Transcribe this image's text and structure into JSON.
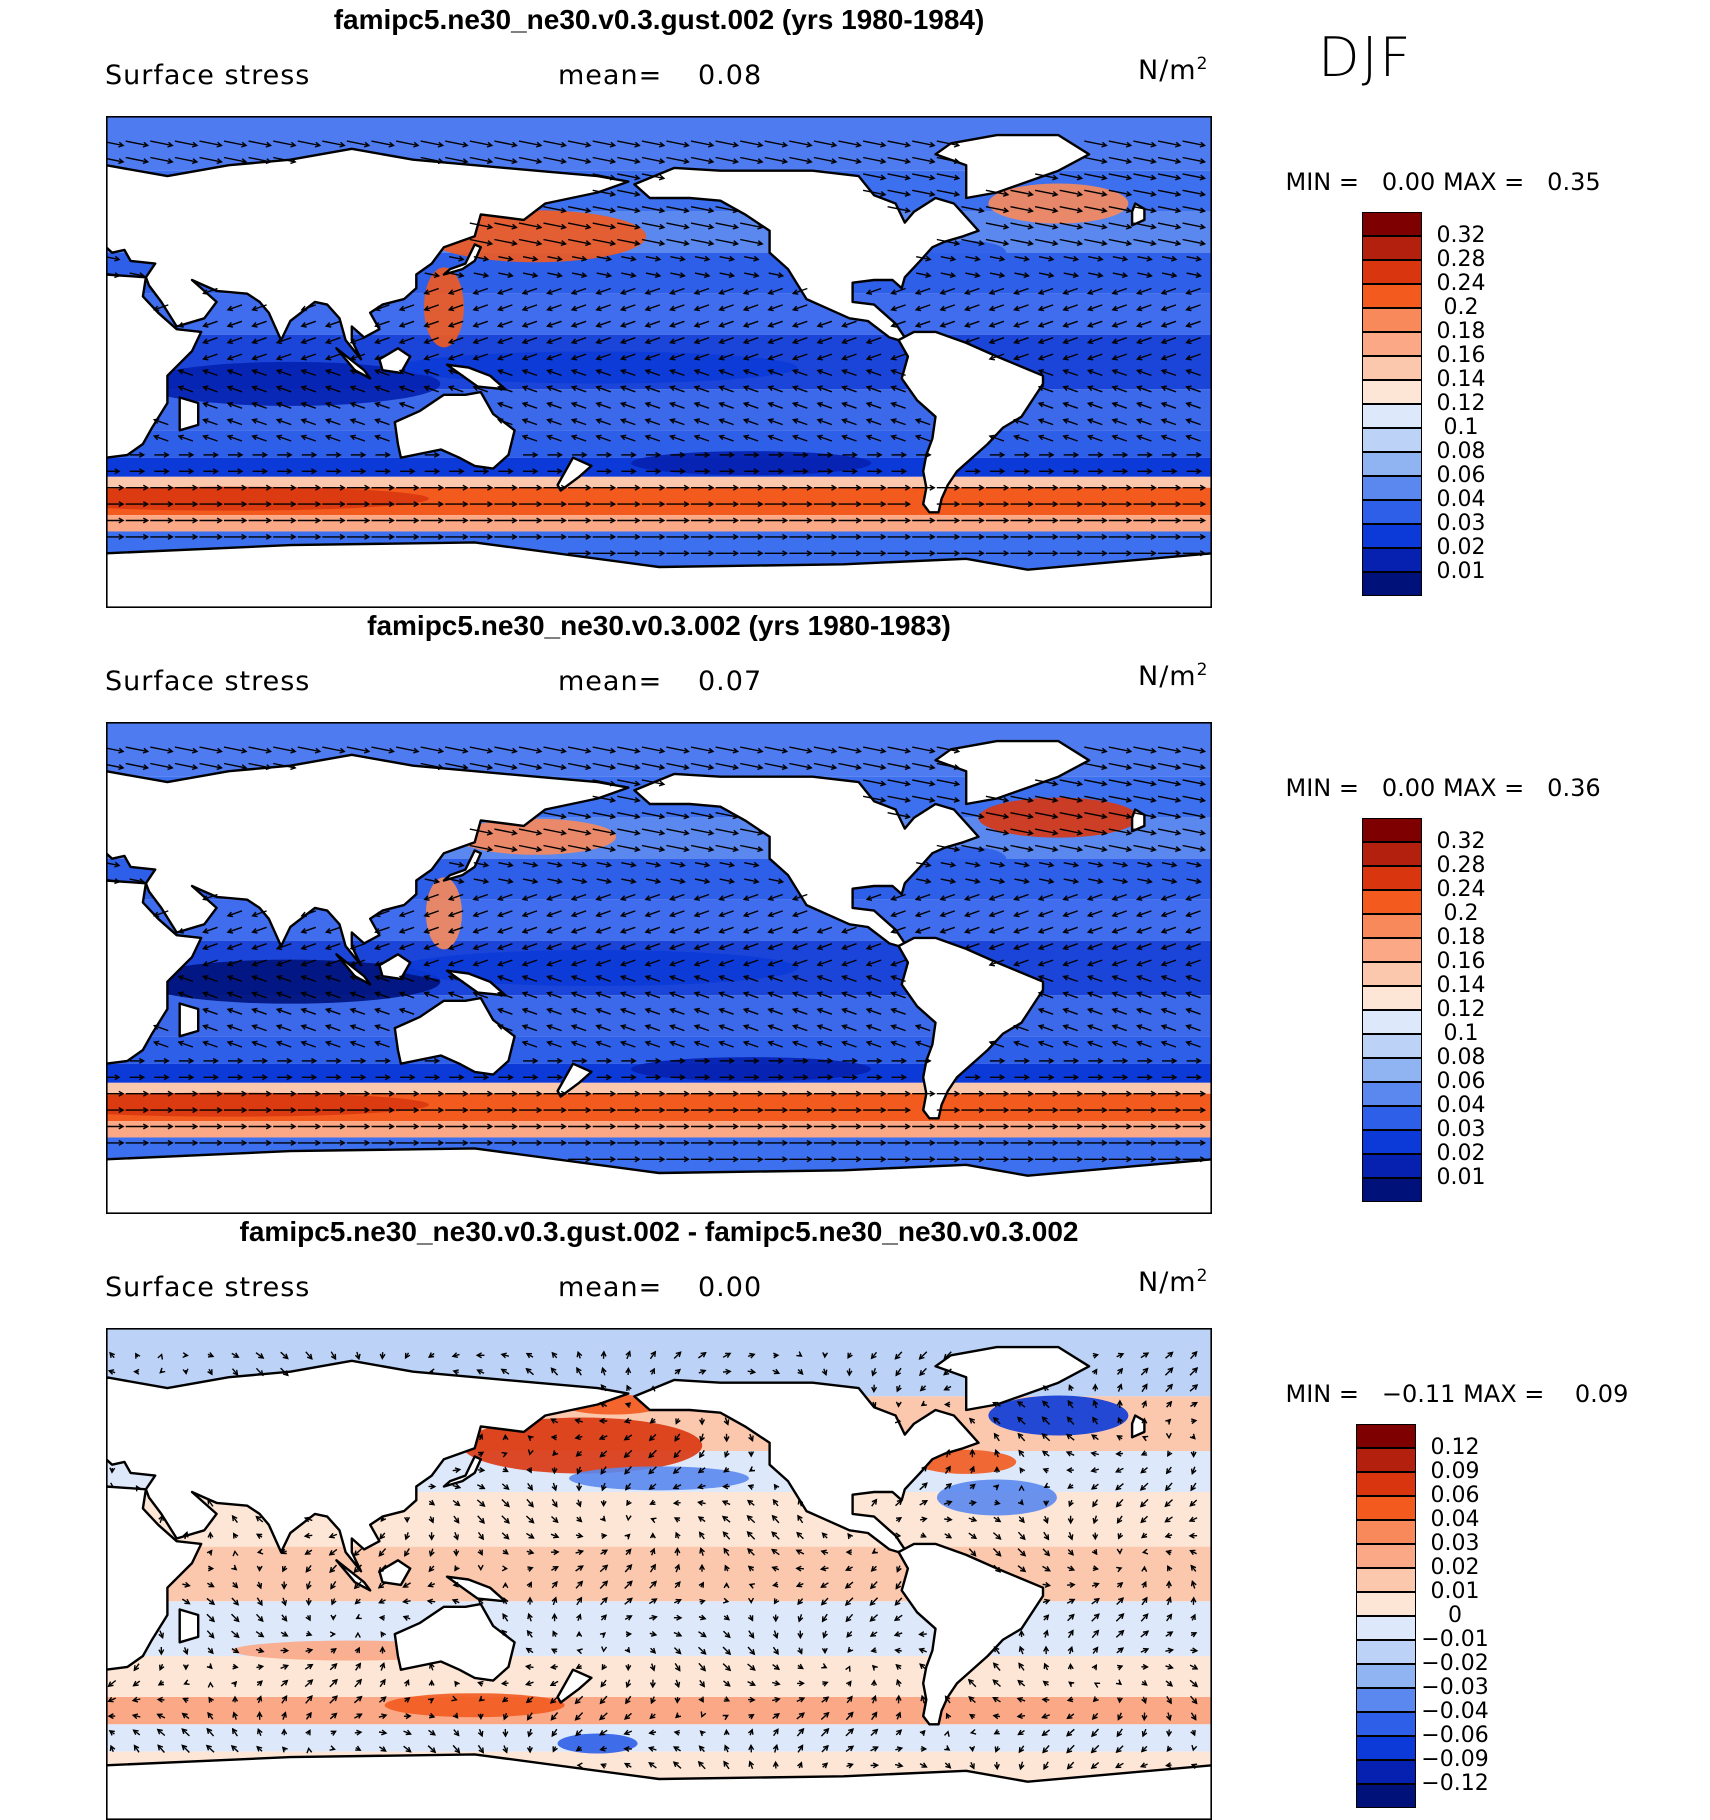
{
  "season": "DJF",
  "panels": [
    {
      "title": "famipc5.ne30_ne30.v0.3.gust.002 (yrs 1980-1984)",
      "variable": "Surface stress",
      "mean_label": "mean=",
      "mean_value": "0.08",
      "units": "N/m",
      "units_exp": "2",
      "min_label": "MIN =",
      "min_value": "0.00",
      "max_label": "MAX =",
      "max_value": "0.35",
      "colorbar": {
        "labels": [
          "0.32",
          "0.28",
          "0.24",
          "0.2",
          "0.18",
          "0.16",
          "0.14",
          "0.12",
          "0.1",
          "0.08",
          "0.06",
          "0.04",
          "0.03",
          "0.02",
          "0.01"
        ],
        "colors": [
          "#7f0000",
          "#b3200e",
          "#d9360f",
          "#f25a1e",
          "#f8895a",
          "#fba886",
          "#fbc8ae",
          "#fde6d6",
          "#dde9fb",
          "#bcd3f7",
          "#90b4f2",
          "#5a88ee",
          "#2e5fe8",
          "#0b3ad8",
          "#0621b0",
          "#00127a"
        ]
      }
    },
    {
      "title": "famipc5.ne30_ne30.v0.3.002 (yrs 1980-1983)",
      "variable": "Surface stress",
      "mean_label": "mean=",
      "mean_value": "0.07",
      "units": "N/m",
      "units_exp": "2",
      "min_label": "MIN =",
      "min_value": "0.00",
      "max_label": "MAX =",
      "max_value": "0.36",
      "colorbar": {
        "labels": [
          "0.32",
          "0.28",
          "0.24",
          "0.2",
          "0.18",
          "0.16",
          "0.14",
          "0.12",
          "0.1",
          "0.08",
          "0.06",
          "0.04",
          "0.03",
          "0.02",
          "0.01"
        ],
        "colors": [
          "#7f0000",
          "#b3200e",
          "#d9360f",
          "#f25a1e",
          "#f8895a",
          "#fba886",
          "#fbc8ae",
          "#fde6d6",
          "#dde9fb",
          "#bcd3f7",
          "#90b4f2",
          "#5a88ee",
          "#2e5fe8",
          "#0b3ad8",
          "#0621b0",
          "#00127a"
        ]
      }
    },
    {
      "title": "famipc5.ne30_ne30.v0.3.gust.002 - famipc5.ne30_ne30.v0.3.002",
      "variable": "Surface stress",
      "mean_label": "mean=",
      "mean_value": "0.00",
      "units": "N/m",
      "units_exp": "2",
      "min_label": "MIN =",
      "min_value": "−0.11",
      "max_label": "MAX =",
      "max_value": "0.09",
      "colorbar": {
        "labels": [
          "0.12",
          "0.09",
          "0.06",
          "0.04",
          "0.03",
          "0.02",
          "0.01",
          "0",
          "−0.01",
          "−0.02",
          "−0.03",
          "−0.04",
          "−0.06",
          "−0.09",
          "−0.12"
        ],
        "colors": [
          "#7f0000",
          "#b3200e",
          "#d9360f",
          "#f25a1e",
          "#f8895a",
          "#fba886",
          "#fbc8ae",
          "#fde6d6",
          "#dde9fb",
          "#bcd3f7",
          "#90b4f2",
          "#5a88ee",
          "#2e5fe8",
          "#0b3ad8",
          "#0621b0",
          "#00127a"
        ]
      }
    }
  ],
  "chart_data": [
    {
      "type": "heatmap",
      "title": "famipc5.ne30_ne30.v0.3.gust.002 (yrs 1980-1984)",
      "variable": "Surface stress",
      "units": "N/m2",
      "mean": 0.08,
      "min": 0.0,
      "max": 0.35,
      "contour_levels": [
        0.01,
        0.02,
        0.03,
        0.04,
        0.06,
        0.08,
        0.1,
        0.12,
        0.14,
        0.16,
        0.18,
        0.2,
        0.24,
        0.28,
        0.32
      ],
      "features": {
        "southern_ocean_band_peak": 0.24,
        "north_pacific_peak": 0.24,
        "north_atlantic_peak": 0.2
      }
    },
    {
      "type": "heatmap",
      "title": "famipc5.ne30_ne30.v0.3.002 (yrs 1980-1983)",
      "variable": "Surface stress",
      "units": "N/m2",
      "mean": 0.07,
      "min": 0.0,
      "max": 0.36,
      "contour_levels": [
        0.01,
        0.02,
        0.03,
        0.04,
        0.06,
        0.08,
        0.1,
        0.12,
        0.14,
        0.16,
        0.18,
        0.2,
        0.24,
        0.28,
        0.32
      ],
      "features": {
        "southern_ocean_band_peak": 0.24,
        "north_pacific_peak": 0.2,
        "north_atlantic_peak": 0.28
      }
    },
    {
      "type": "heatmap",
      "title": "famipc5.ne30_ne30.v0.3.gust.002 - famipc5.ne30_ne30.v0.3.002",
      "variable": "Surface stress",
      "units": "N/m2",
      "mean": 0.0,
      "min": -0.11,
      "max": 0.09,
      "contour_levels": [
        -0.12,
        -0.09,
        -0.06,
        -0.04,
        -0.03,
        -0.02,
        -0.01,
        0,
        0.01,
        0.02,
        0.03,
        0.04,
        0.06,
        0.09,
        0.12
      ],
      "features": {
        "north_pacific_diff": 0.06,
        "north_atlantic_diff": -0.06,
        "gulf_stream_diff": 0.04
      }
    }
  ]
}
